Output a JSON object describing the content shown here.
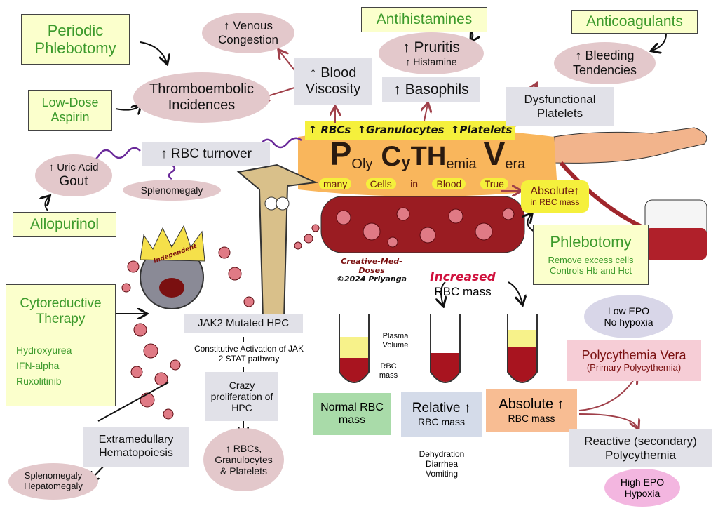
{
  "treatments": {
    "periodic_phlebotomy": "Periodic Phlebotomy",
    "low_dose_aspirin": "Low-Dose Aspirin",
    "antihistamines": "Antihistamines",
    "anticoagulants": "Anticoagulants",
    "allopurinol": "Allopurinol",
    "phlebotomy": {
      "title": "Phlebotomy",
      "lines": [
        "Remove excess cells",
        "Controls Hb and Hct"
      ]
    },
    "cytoreductive": {
      "title": "Cytoreductive Therapy",
      "items": [
        "Hydroxyurea",
        "IFN-alpha",
        "Ruxolitinib"
      ]
    }
  },
  "effects": {
    "thromboembolic": "Thromboembolic Incidences",
    "venous_congestion": "↑ Venous Congestion",
    "blood_viscosity": "↑ Blood Viscosity",
    "pruritis": "↑ Pruritis",
    "histamine": "↑ Histamine",
    "basophils": "↑ Basophils",
    "bleeding": "↑ Bleeding Tendencies",
    "dysfunctional_platelets": "Dysfunctional Platelets",
    "rbc_turnover": "↑ RBC turnover",
    "uric_acid": "↑ Uric Acid",
    "gout": "Gout",
    "splenomegaly": "Splenomegaly"
  },
  "banner": [
    "↑ RBCs",
    "↑Granulocytes",
    "↑Platelets"
  ],
  "title": {
    "parts": [
      "P",
      "Oly",
      "C",
      "y",
      "TH",
      "emia",
      "V",
      "era"
    ],
    "meaning": [
      "many",
      "Cells",
      "in",
      "Blood",
      "True"
    ]
  },
  "absolute_box": {
    "title": "Absolute↑",
    "sub": "in RBC mass"
  },
  "crown": "Independent",
  "credit": {
    "site": "Creative-Med-Doses",
    "author": "©2024 Priyanga"
  },
  "pathway": {
    "jak2": "JAK2 Mutated HPC",
    "activation": "Constitutive Activation of JAK 2 STAT pathway",
    "proliferation": "Crazy proliferation of HPC",
    "result": "↑ RBCs, Granulocytes & Platelets",
    "extramedullary": "Extramedullary Hematopoiesis",
    "organomegaly": "Splenomegaly Hepatomegaly"
  },
  "rbc_mass": {
    "increased": "Increased",
    "label": "RBC mass",
    "plasma": "Plasma Volume",
    "rbc": "RBC mass",
    "normal": "Normal RBC mass",
    "relative": "Relative ↑",
    "relative_sub": "RBC mass",
    "absolute": "Absolute ↑",
    "absolute_sub": "RBC mass",
    "causes": [
      "Dehydration",
      "Diarrhea",
      "Vomiting"
    ]
  },
  "classification": {
    "low_epo": "Low EPO No hypoxia",
    "pv": "Polycythemia Vera",
    "pv_sub": "(Primary Polycythemia)",
    "reactive": "Reactive (secondary) Polycythemia",
    "high_epo": "High EPO Hypoxia"
  }
}
